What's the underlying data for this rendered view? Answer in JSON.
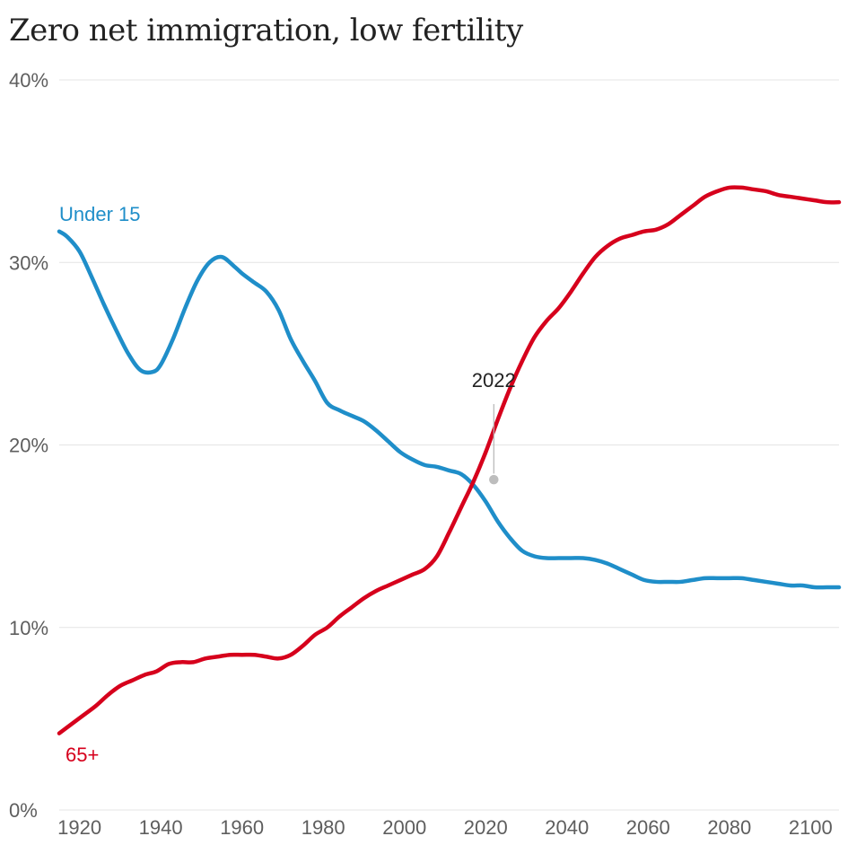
{
  "chart_data": {
    "type": "line",
    "title": "Zero net immigration,  low fertility",
    "xlabel": "",
    "ylabel": "",
    "xlim": [
      1915,
      2107
    ],
    "ylim": [
      0,
      40
    ],
    "y_ticks": [
      0,
      10,
      20,
      30,
      40
    ],
    "y_tick_labels": [
      "0%",
      "10%",
      "20%",
      "30%",
      "40%"
    ],
    "x_ticks": [
      1920,
      1940,
      1960,
      1980,
      2000,
      2020,
      2040,
      2060,
      2080,
      2100
    ],
    "x_tick_labels": [
      "1920",
      "1940",
      "1960",
      "1980",
      "2000",
      "2020",
      "2040",
      "2060",
      "2080",
      "2100"
    ],
    "grid": true,
    "series": [
      {
        "name": "Under 15",
        "color": "#1f8ec9",
        "points": [
          [
            1915,
            31.7
          ],
          [
            1917,
            31.4
          ],
          [
            1920,
            30.6
          ],
          [
            1923,
            29.2
          ],
          [
            1926,
            27.7
          ],
          [
            1929,
            26.3
          ],
          [
            1932,
            25.0
          ],
          [
            1935,
            24.1
          ],
          [
            1938,
            24.0
          ],
          [
            1940,
            24.4
          ],
          [
            1943,
            25.8
          ],
          [
            1946,
            27.5
          ],
          [
            1949,
            29.0
          ],
          [
            1952,
            30.0
          ],
          [
            1955,
            30.3
          ],
          [
            1958,
            29.8
          ],
          [
            1960,
            29.4
          ],
          [
            1963,
            28.9
          ],
          [
            1966,
            28.4
          ],
          [
            1969,
            27.4
          ],
          [
            1972,
            25.8
          ],
          [
            1975,
            24.6
          ],
          [
            1978,
            23.5
          ],
          [
            1981,
            22.3
          ],
          [
            1984,
            21.9
          ],
          [
            1987,
            21.6
          ],
          [
            1990,
            21.3
          ],
          [
            1993,
            20.8
          ],
          [
            1996,
            20.2
          ],
          [
            1999,
            19.6
          ],
          [
            2002,
            19.2
          ],
          [
            2005,
            18.9
          ],
          [
            2008,
            18.8
          ],
          [
            2011,
            18.6
          ],
          [
            2014,
            18.4
          ],
          [
            2017,
            17.8
          ],
          [
            2020,
            16.9
          ],
          [
            2023,
            15.8
          ],
          [
            2026,
            14.9
          ],
          [
            2029,
            14.2
          ],
          [
            2032,
            13.9
          ],
          [
            2035,
            13.8
          ],
          [
            2038,
            13.8
          ],
          [
            2041,
            13.8
          ],
          [
            2044,
            13.8
          ],
          [
            2047,
            13.7
          ],
          [
            2050,
            13.5
          ],
          [
            2053,
            13.2
          ],
          [
            2056,
            12.9
          ],
          [
            2059,
            12.6
          ],
          [
            2062,
            12.5
          ],
          [
            2065,
            12.5
          ],
          [
            2068,
            12.5
          ],
          [
            2071,
            12.6
          ],
          [
            2074,
            12.7
          ],
          [
            2077,
            12.7
          ],
          [
            2080,
            12.7
          ],
          [
            2083,
            12.7
          ],
          [
            2086,
            12.6
          ],
          [
            2089,
            12.5
          ],
          [
            2092,
            12.4
          ],
          [
            2095,
            12.3
          ],
          [
            2098,
            12.3
          ],
          [
            2101,
            12.2
          ],
          [
            2104,
            12.2
          ],
          [
            2107,
            12.2
          ]
        ]
      },
      {
        "name": "65+",
        "color": "#d6001c",
        "points": [
          [
            1915,
            4.2
          ],
          [
            1918,
            4.7
          ],
          [
            1921,
            5.2
          ],
          [
            1924,
            5.7
          ],
          [
            1927,
            6.3
          ],
          [
            1930,
            6.8
          ],
          [
            1933,
            7.1
          ],
          [
            1936,
            7.4
          ],
          [
            1939,
            7.6
          ],
          [
            1942,
            8.0
          ],
          [
            1945,
            8.1
          ],
          [
            1948,
            8.1
          ],
          [
            1951,
            8.3
          ],
          [
            1954,
            8.4
          ],
          [
            1957,
            8.5
          ],
          [
            1960,
            8.5
          ],
          [
            1963,
            8.5
          ],
          [
            1966,
            8.4
          ],
          [
            1969,
            8.3
          ],
          [
            1972,
            8.5
          ],
          [
            1975,
            9.0
          ],
          [
            1978,
            9.6
          ],
          [
            1981,
            10.0
          ],
          [
            1984,
            10.6
          ],
          [
            1987,
            11.1
          ],
          [
            1990,
            11.6
          ],
          [
            1993,
            12.0
          ],
          [
            1996,
            12.3
          ],
          [
            1999,
            12.6
          ],
          [
            2002,
            12.9
          ],
          [
            2005,
            13.2
          ],
          [
            2008,
            13.9
          ],
          [
            2011,
            15.2
          ],
          [
            2014,
            16.6
          ],
          [
            2017,
            18.0
          ],
          [
            2020,
            19.6
          ],
          [
            2023,
            21.4
          ],
          [
            2026,
            23.1
          ],
          [
            2029,
            24.6
          ],
          [
            2032,
            25.9
          ],
          [
            2035,
            26.8
          ],
          [
            2038,
            27.5
          ],
          [
            2041,
            28.4
          ],
          [
            2044,
            29.4
          ],
          [
            2047,
            30.3
          ],
          [
            2050,
            30.9
          ],
          [
            2053,
            31.3
          ],
          [
            2056,
            31.5
          ],
          [
            2059,
            31.7
          ],
          [
            2062,
            31.8
          ],
          [
            2065,
            32.1
          ],
          [
            2068,
            32.6
          ],
          [
            2071,
            33.1
          ],
          [
            2074,
            33.6
          ],
          [
            2077,
            33.9
          ],
          [
            2080,
            34.1
          ],
          [
            2083,
            34.1
          ],
          [
            2086,
            34.0
          ],
          [
            2089,
            33.9
          ],
          [
            2092,
            33.7
          ],
          [
            2095,
            33.6
          ],
          [
            2098,
            33.5
          ],
          [
            2101,
            33.4
          ],
          [
            2104,
            33.3
          ],
          [
            2107,
            33.3
          ]
        ]
      }
    ],
    "annotations": [
      {
        "text": "2022",
        "x": 2022,
        "y": 18.1
      }
    ]
  }
}
